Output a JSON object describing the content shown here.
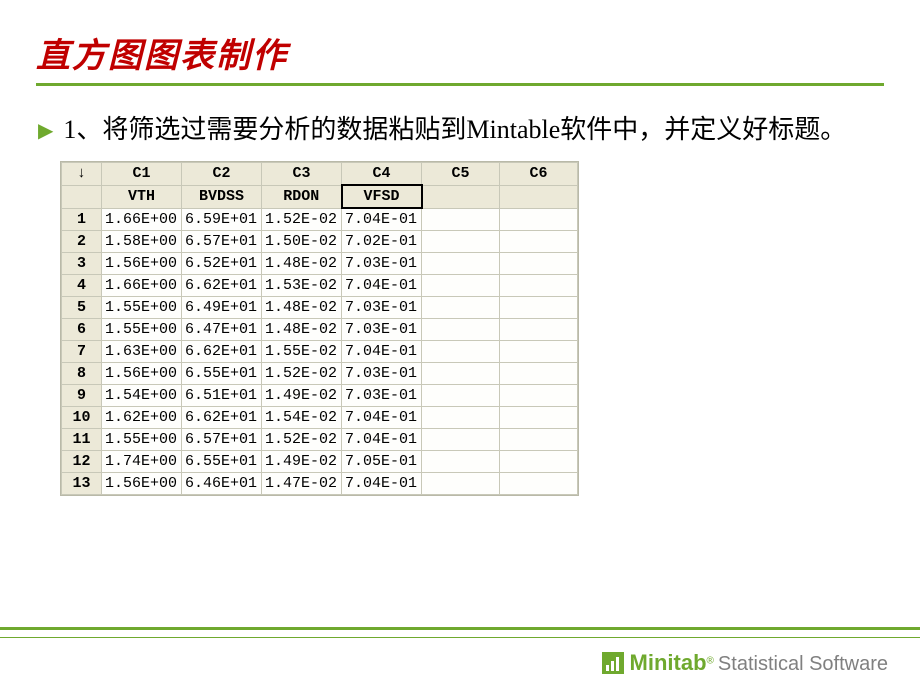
{
  "slide": {
    "title": "直方图图表制作",
    "body": "1、将筛选过需要分析的数据粘贴到Mintable软件中，并定义好标题。"
  },
  "table": {
    "corner": "↓",
    "col_headers": [
      "C1",
      "C2",
      "C3",
      "C4",
      "C5",
      "C6"
    ],
    "col_names": [
      "VTH",
      "BVDSS",
      "RDON",
      "VFSD",
      "",
      ""
    ],
    "selected_name_col": 3,
    "rows": [
      {
        "n": "1",
        "v": [
          "1.66E+00",
          "6.59E+01",
          "1.52E-02",
          "7.04E-01",
          "",
          ""
        ]
      },
      {
        "n": "2",
        "v": [
          "1.58E+00",
          "6.57E+01",
          "1.50E-02",
          "7.02E-01",
          "",
          ""
        ]
      },
      {
        "n": "3",
        "v": [
          "1.56E+00",
          "6.52E+01",
          "1.48E-02",
          "7.03E-01",
          "",
          ""
        ]
      },
      {
        "n": "4",
        "v": [
          "1.66E+00",
          "6.62E+01",
          "1.53E-02",
          "7.04E-01",
          "",
          ""
        ]
      },
      {
        "n": "5",
        "v": [
          "1.55E+00",
          "6.49E+01",
          "1.48E-02",
          "7.03E-01",
          "",
          ""
        ]
      },
      {
        "n": "6",
        "v": [
          "1.55E+00",
          "6.47E+01",
          "1.48E-02",
          "7.03E-01",
          "",
          ""
        ]
      },
      {
        "n": "7",
        "v": [
          "1.63E+00",
          "6.62E+01",
          "1.55E-02",
          "7.04E-01",
          "",
          ""
        ]
      },
      {
        "n": "8",
        "v": [
          "1.56E+00",
          "6.55E+01",
          "1.52E-02",
          "7.03E-01",
          "",
          ""
        ]
      },
      {
        "n": "9",
        "v": [
          "1.54E+00",
          "6.51E+01",
          "1.49E-02",
          "7.03E-01",
          "",
          ""
        ]
      },
      {
        "n": "10",
        "v": [
          "1.62E+00",
          "6.62E+01",
          "1.54E-02",
          "7.04E-01",
          "",
          ""
        ]
      },
      {
        "n": "11",
        "v": [
          "1.55E+00",
          "6.57E+01",
          "1.52E-02",
          "7.04E-01",
          "",
          ""
        ]
      },
      {
        "n": "12",
        "v": [
          "1.74E+00",
          "6.55E+01",
          "1.49E-02",
          "7.05E-01",
          "",
          ""
        ]
      },
      {
        "n": "13",
        "v": [
          "1.56E+00",
          "6.46E+01",
          "1.47E-02",
          "7.04E-01",
          "",
          ""
        ]
      }
    ]
  },
  "footer": {
    "brand": "Minitab",
    "reg": "®",
    "tagline": "Statistical Software"
  },
  "colors": {
    "accent": "#6fa92e",
    "title": "#c00000",
    "header_bg": "#ece9d8",
    "border": "#c8c8b8",
    "muted": "#808080"
  }
}
